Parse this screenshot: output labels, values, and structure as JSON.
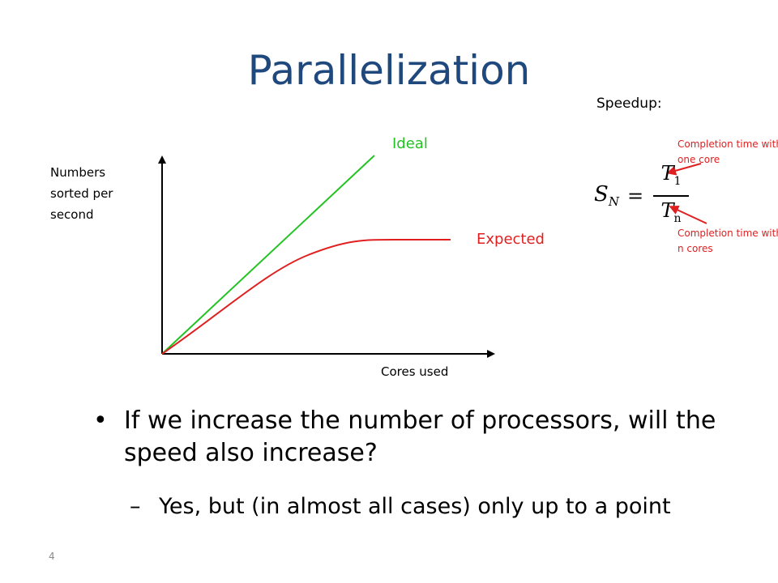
{
  "slide": {
    "title": "Parallelization",
    "page_number": "4"
  },
  "chart": {
    "y_axis_label": "Numbers sorted per second",
    "x_axis_label": "Cores used",
    "series": [
      {
        "name": "Ideal",
        "color": "#22c322"
      },
      {
        "name": "Expected",
        "color": "#e02020"
      }
    ]
  },
  "chart_data": {
    "type": "line",
    "xlabel": "Cores used",
    "ylabel": "Numbers sorted per second",
    "series": [
      {
        "name": "Ideal",
        "shape": "linear, unbounded increase"
      },
      {
        "name": "Expected",
        "shape": "increases then plateaus"
      }
    ],
    "grid": false
  },
  "speedup": {
    "label": "Speedup:",
    "formula": {
      "lhs": "S",
      "lhs_sub": "N",
      "equals": "=",
      "numerator": "T",
      "numerator_sub": "1",
      "denominator": "T",
      "denominator_sub": "n"
    },
    "note_numerator": "Completion time with one core",
    "note_denominator": "Completion time with n cores",
    "note_color": "#e02020"
  },
  "bullets": {
    "main": "If we increase the number of processors, will the speed also increase?",
    "sub": "Yes, but (in almost all cases) only up to a point",
    "bullet_symbol": "•",
    "dash_symbol": "–"
  },
  "colors": {
    "title": "#1f497d",
    "ideal": "#22c322",
    "expected": "#e02020"
  }
}
